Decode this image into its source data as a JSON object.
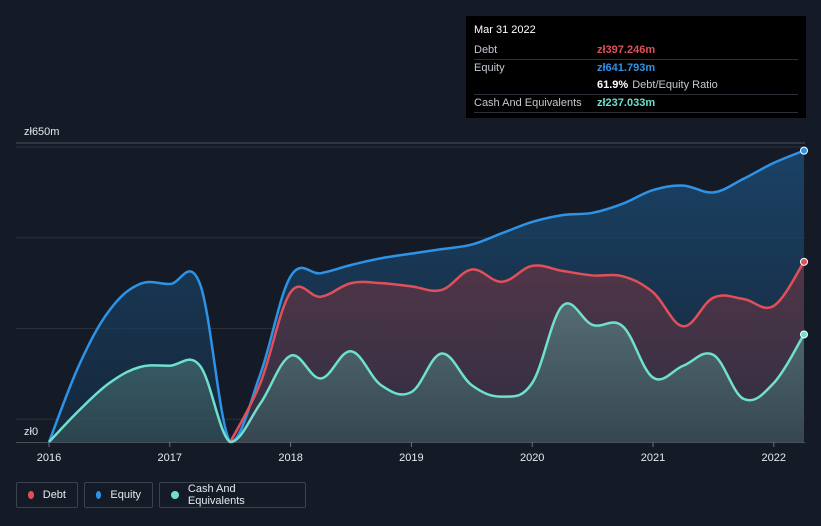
{
  "tooltip": {
    "date": "Mar 31 2022",
    "rows": [
      {
        "label": "Debt",
        "value": "zł397.246m",
        "color": "#e0505a"
      },
      {
        "label": "Equity",
        "value": "zł641.793m",
        "color": "#2e93e6"
      },
      {
        "label": "",
        "ratio": "61.9%",
        "ratio_label": "Debt/Equity Ratio"
      },
      {
        "label": "Cash And Equivalents",
        "value": "zł237.033m",
        "color": "#6fe0cd"
      }
    ]
  },
  "legend": [
    {
      "label": "Debt",
      "color": "#e0505a"
    },
    {
      "label": "Equity",
      "color": "#2e93e6"
    },
    {
      "label": "Cash And Equivalents",
      "color": "#6fe0cd"
    }
  ],
  "chart_data": {
    "type": "area",
    "y_tick_labels": [
      "zł650m",
      "zł0"
    ],
    "ylim": [
      0,
      650
    ],
    "xlim": [
      2016.0,
      2022.25
    ],
    "x_ticks": [
      2016,
      2017,
      2018,
      2019,
      2020,
      2021,
      2022
    ],
    "grid": true,
    "legend_position": "bottom-left",
    "series": [
      {
        "name": "Equity",
        "color": "#2e93e6",
        "x": [
          2016.0,
          2016.25,
          2016.5,
          2016.75,
          2017.0,
          2017.25,
          2017.5,
          2017.75,
          2018.0,
          2018.25,
          2018.5,
          2018.75,
          2019.0,
          2019.25,
          2019.5,
          2019.75,
          2020.0,
          2020.25,
          2020.5,
          2020.75,
          2021.0,
          2021.25,
          2021.5,
          2021.75,
          2022.0,
          2022.25
        ],
        "y": [
          0,
          170,
          290,
          348,
          348,
          348,
          0,
          150,
          365,
          372,
          390,
          405,
          415,
          425,
          435,
          460,
          485,
          500,
          505,
          525,
          555,
          565,
          550,
          580,
          615,
          642
        ]
      },
      {
        "name": "Debt",
        "color": "#e0505a",
        "x": [
          2017.5,
          2017.75,
          2018.0,
          2018.25,
          2018.5,
          2018.75,
          2019.0,
          2019.25,
          2019.5,
          2019.75,
          2020.0,
          2020.25,
          2020.5,
          2020.75,
          2021.0,
          2021.25,
          2021.5,
          2021.75,
          2022.0,
          2022.25
        ],
        "y": [
          0,
          130,
          330,
          320,
          350,
          350,
          343,
          335,
          380,
          353,
          388,
          377,
          367,
          365,
          330,
          255,
          318,
          315,
          300,
          397
        ]
      },
      {
        "name": "Cash And Equivalents",
        "color": "#6fe0cd",
        "x": [
          2016.0,
          2016.25,
          2016.5,
          2016.75,
          2017.0,
          2017.25,
          2017.5,
          2017.75,
          2018.0,
          2018.25,
          2018.5,
          2018.75,
          2019.0,
          2019.25,
          2019.5,
          2019.75,
          2020.0,
          2020.25,
          2020.5,
          2020.75,
          2021.0,
          2021.25,
          2021.5,
          2021.75,
          2022.0,
          2022.25
        ],
        "y": [
          0,
          70,
          130,
          165,
          168,
          168,
          0,
          85,
          190,
          140,
          200,
          125,
          110,
          195,
          125,
          100,
          130,
          300,
          258,
          255,
          142,
          168,
          192,
          95,
          130,
          237
        ]
      }
    ]
  }
}
